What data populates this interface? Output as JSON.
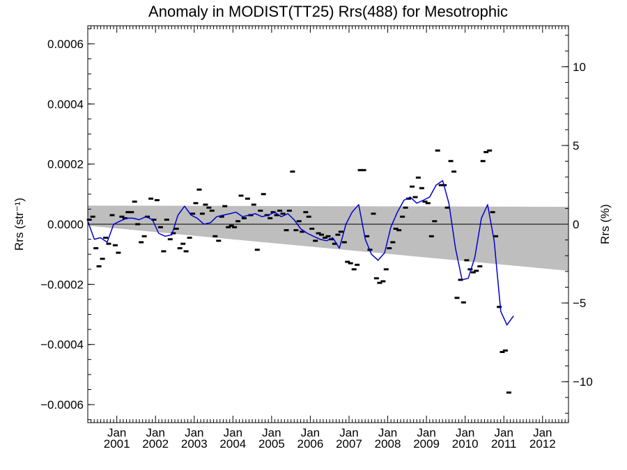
{
  "chart_data": {
    "type": "scatter",
    "title": "Anomaly in MODIST(TT25) Rrs(488) for Mesotrophic",
    "ylabel_left": "Rrs (str⁻¹)",
    "ylabel_right": "Rrs (%)",
    "xlim": [
      2000.25,
      2012.67
    ],
    "ylim": [
      -0.00066,
      0.00066
    ],
    "y2lim": [
      -12.6,
      12.6
    ],
    "x_ticks": [
      {
        "month": "Jan",
        "year": "2001",
        "x": 2001.0
      },
      {
        "month": "Jan",
        "year": "2002",
        "x": 2002.0
      },
      {
        "month": "Jan",
        "year": "2003",
        "x": 2003.0
      },
      {
        "month": "Jan",
        "year": "2004",
        "x": 2004.0
      },
      {
        "month": "Jan",
        "year": "2005",
        "x": 2005.0
      },
      {
        "month": "Jan",
        "year": "2006",
        "x": 2006.0
      },
      {
        "month": "Jan",
        "year": "2007",
        "x": 2007.0
      },
      {
        "month": "Jan",
        "year": "2008",
        "x": 2008.0
      },
      {
        "month": "Jan",
        "year": "2009",
        "x": 2009.0
      },
      {
        "month": "Jan",
        "year": "2010",
        "x": 2010.0
      },
      {
        "month": "Jan",
        "year": "2011",
        "x": 2011.0
      },
      {
        "month": "Jan",
        "year": "2012",
        "x": 2012.0
      }
    ],
    "y_ticks_left": [
      {
        "label": "0.0006",
        "value": 0.0006
      },
      {
        "label": "0.0004",
        "value": 0.0004
      },
      {
        "label": "0.0002",
        "value": 0.0002
      },
      {
        "label": "0.0000",
        "value": 0.0
      },
      {
        "label": "−0.0002",
        "value": -0.0002
      },
      {
        "label": "−0.0004",
        "value": -0.0004
      },
      {
        "label": "−0.0006",
        "value": -0.0006
      }
    ],
    "y_ticks_right": [
      {
        "label": "10",
        "value": 10
      },
      {
        "label": "5",
        "value": 5
      },
      {
        "label": "0",
        "value": 0
      },
      {
        "label": "−5",
        "value": -5
      },
      {
        "label": "−10",
        "value": -10
      }
    ],
    "zero_line": 0.0,
    "uncertainty_band": {
      "color": "#bebebe",
      "upper": [
        [
          2000.25,
          6.2e-05
        ],
        [
          2012.67,
          5.8e-05
        ]
      ],
      "lower": [
        [
          2012.67,
          -0.000155
        ],
        [
          2000.25,
          -5e-06
        ]
      ]
    },
    "series": [
      {
        "style": "dash-markers",
        "color": "#000000",
        "points": [
          [
            2000.29,
            1.5e-05
          ],
          [
            2000.38,
            2.5e-05
          ],
          [
            2000.46,
            -8e-05
          ],
          [
            2000.54,
            -0.00014
          ],
          [
            2000.63,
            -0.000115
          ],
          [
            2000.71,
            -4.5e-05
          ],
          [
            2000.79,
            -6.5e-05
          ],
          [
            2000.88,
            3e-05
          ],
          [
            2000.96,
            -7e-05
          ],
          [
            2001.04,
            -9.5e-05
          ],
          [
            2001.13,
            2.5e-05
          ],
          [
            2001.21,
            2e-05
          ],
          [
            2001.29,
            4e-05
          ],
          [
            2001.38,
            4e-05
          ],
          [
            2001.46,
            7.5e-05
          ],
          [
            2001.54,
            0.0
          ],
          [
            2001.63,
            -6e-05
          ],
          [
            2001.71,
            -4e-05
          ],
          [
            2001.79,
            2.5e-05
          ],
          [
            2001.88,
            8.5e-05
          ],
          [
            2001.96,
            1.5e-05
          ],
          [
            2002.04,
            8e-05
          ],
          [
            2002.13,
            -1e-05
          ],
          [
            2002.21,
            -9e-05
          ],
          [
            2002.29,
            1.5e-05
          ],
          [
            2002.38,
            -5e-05
          ],
          [
            2002.46,
            -3e-05
          ],
          [
            2002.54,
            -1.5e-05
          ],
          [
            2002.63,
            -8e-05
          ],
          [
            2002.71,
            -6.5e-05
          ],
          [
            2002.79,
            -9e-05
          ],
          [
            2002.88,
            -4.5e-05
          ],
          [
            2002.96,
            3.5e-05
          ],
          [
            2003.04,
            7e-05
          ],
          [
            2003.13,
            0.000115
          ],
          [
            2003.21,
            3.5e-05
          ],
          [
            2003.29,
            6.5e-05
          ],
          [
            2003.38,
            5.5e-05
          ],
          [
            2003.46,
            4.5e-05
          ],
          [
            2003.54,
            -4e-05
          ],
          [
            2003.63,
            -5.5e-05
          ],
          [
            2003.71,
            2.5e-05
          ],
          [
            2003.79,
            6e-05
          ],
          [
            2003.88,
            -1e-05
          ],
          [
            2003.96,
            -5e-06
          ],
          [
            2004.04,
            -1e-05
          ],
          [
            2004.13,
            1e-05
          ],
          [
            2004.21,
            9.5e-05
          ],
          [
            2004.29,
            2e-05
          ],
          [
            2004.38,
            8.5e-05
          ],
          [
            2004.46,
            3e-05
          ],
          [
            2004.54,
            6.5e-05
          ],
          [
            2004.63,
            -8.5e-05
          ],
          [
            2004.71,
            4.5e-05
          ],
          [
            2004.79,
            0.0001
          ],
          [
            2004.88,
            3e-05
          ],
          [
            2004.96,
            2e-05
          ],
          [
            2005.04,
            4e-05
          ],
          [
            2005.13,
            3e-05
          ],
          [
            2005.21,
            4.5e-05
          ],
          [
            2005.29,
            3.5e-05
          ],
          [
            2005.38,
            -2e-05
          ],
          [
            2005.46,
            4.5e-05
          ],
          [
            2005.54,
            0.000175
          ],
          [
            2005.63,
            -2e-05
          ],
          [
            2005.71,
            1e-05
          ],
          [
            2005.79,
            -2.5e-05
          ],
          [
            2005.88,
            4e-05
          ],
          [
            2005.96,
            2.5e-05
          ],
          [
            2006.04,
            -1.5e-05
          ],
          [
            2006.13,
            -5.5e-05
          ],
          [
            2006.21,
            -3e-05
          ],
          [
            2006.29,
            -3.5e-05
          ],
          [
            2006.38,
            -4.5e-05
          ],
          [
            2006.46,
            -4e-05
          ],
          [
            2006.54,
            -5e-05
          ],
          [
            2006.63,
            -6.5e-05
          ],
          [
            2006.71,
            -3.5e-05
          ],
          [
            2006.79,
            -2.5e-05
          ],
          [
            2006.88,
            -6e-05
          ],
          [
            2006.96,
            -0.000125
          ],
          [
            2007.04,
            -0.00013
          ],
          [
            2007.13,
            -0.00015
          ],
          [
            2007.21,
            -0.000135
          ],
          [
            2007.29,
            0.00018
          ],
          [
            2007.38,
            0.00018
          ],
          [
            2007.46,
            -4e-05
          ],
          [
            2007.54,
            -8.5e-05
          ],
          [
            2007.63,
            3.5e-05
          ],
          [
            2007.71,
            -0.00018
          ],
          [
            2007.79,
            -0.000195
          ],
          [
            2007.88,
            -0.00019
          ],
          [
            2007.96,
            -0.00015
          ],
          [
            2008.04,
            -8e-05
          ],
          [
            2008.13,
            -6e-05
          ],
          [
            2008.21,
            -1.5e-05
          ],
          [
            2008.29,
            -2e-05
          ],
          [
            2008.38,
            2.5e-05
          ],
          [
            2008.46,
            5.5e-05
          ],
          [
            2008.54,
            8.5e-05
          ],
          [
            2008.63,
            0.000125
          ],
          [
            2008.71,
            9e-05
          ],
          [
            2008.79,
            0.000155
          ],
          [
            2008.88,
            0.00012
          ],
          [
            2008.96,
            7.5e-05
          ],
          [
            2009.04,
            7e-05
          ],
          [
            2009.13,
            -4e-05
          ],
          [
            2009.21,
            1e-05
          ],
          [
            2009.29,
            0.000245
          ],
          [
            2009.38,
            0.00013
          ],
          [
            2009.46,
            0.00013
          ],
          [
            2009.54,
            5.5e-05
          ],
          [
            2009.63,
            0.00021
          ],
          [
            2009.71,
            0.000175
          ],
          [
            2009.79,
            -0.000245
          ],
          [
            2009.88,
            -0.000185
          ],
          [
            2009.96,
            -0.00026
          ],
          [
            2010.04,
            -0.00012
          ],
          [
            2010.13,
            -0.00015
          ],
          [
            2010.21,
            -0.00016
          ],
          [
            2010.29,
            -0.000155
          ],
          [
            2010.38,
            -0.00014
          ],
          [
            2010.46,
            0.00021
          ],
          [
            2010.54,
            0.00024
          ],
          [
            2010.63,
            0.000245
          ],
          [
            2010.71,
            4e-05
          ],
          [
            2010.79,
            -4e-05
          ],
          [
            2010.88,
            -0.000275
          ],
          [
            2010.96,
            -0.000425
          ],
          [
            2011.04,
            -0.00042
          ],
          [
            2011.13,
            -0.00056
          ]
        ]
      },
      {
        "style": "line",
        "color": "#0000cc",
        "points": [
          [
            2000.25,
            1e-05
          ],
          [
            2000.42,
            -5e-05
          ],
          [
            2000.58,
            -4.5e-05
          ],
          [
            2000.75,
            -6e-05
          ],
          [
            2000.92,
            0.0
          ],
          [
            2001.08,
            1e-05
          ],
          [
            2001.25,
            2e-05
          ],
          [
            2001.42,
            2e-05
          ],
          [
            2001.58,
            1.5e-05
          ],
          [
            2001.75,
            2.5e-05
          ],
          [
            2001.92,
            1.5e-05
          ],
          [
            2002.08,
            -3e-05
          ],
          [
            2002.25,
            -4e-05
          ],
          [
            2002.42,
            -3.5e-05
          ],
          [
            2002.58,
            3e-05
          ],
          [
            2002.75,
            6e-05
          ],
          [
            2002.92,
            3e-05
          ],
          [
            2003.08,
            2e-05
          ],
          [
            2003.25,
            0.0
          ],
          [
            2003.42,
            5e-06
          ],
          [
            2003.58,
            2.5e-05
          ],
          [
            2003.75,
            3e-05
          ],
          [
            2003.92,
            3.5e-05
          ],
          [
            2004.08,
            4e-05
          ],
          [
            2004.25,
            2.5e-05
          ],
          [
            2004.42,
            3e-05
          ],
          [
            2004.58,
            3.5e-05
          ],
          [
            2004.75,
            2.5e-05
          ],
          [
            2004.92,
            3e-05
          ],
          [
            2005.08,
            4e-05
          ],
          [
            2005.25,
            2.5e-05
          ],
          [
            2005.42,
            3.5e-05
          ],
          [
            2005.58,
            1.5e-05
          ],
          [
            2005.75,
            -1.5e-05
          ],
          [
            2005.92,
            -3e-05
          ],
          [
            2006.08,
            -4e-05
          ],
          [
            2006.25,
            -5e-05
          ],
          [
            2006.42,
            -5.5e-05
          ],
          [
            2006.58,
            -4.5e-05
          ],
          [
            2006.75,
            -8e-05
          ],
          [
            2006.92,
            0.0
          ],
          [
            2007.08,
            4e-05
          ],
          [
            2007.25,
            6.5e-05
          ],
          [
            2007.42,
            -5e-05
          ],
          [
            2007.58,
            -0.0001
          ],
          [
            2007.75,
            -0.00012
          ],
          [
            2007.92,
            -9.5e-05
          ],
          [
            2008.08,
            -1e-05
          ],
          [
            2008.25,
            4e-05
          ],
          [
            2008.42,
            8e-05
          ],
          [
            2008.58,
            9e-05
          ],
          [
            2008.75,
            7e-05
          ],
          [
            2008.92,
            8e-05
          ],
          [
            2009.08,
            9e-05
          ],
          [
            2009.25,
            0.00013
          ],
          [
            2009.42,
            0.000145
          ],
          [
            2009.58,
            7e-05
          ],
          [
            2009.75,
            -8e-05
          ],
          [
            2009.92,
            -0.000185
          ],
          [
            2010.08,
            -0.00018
          ],
          [
            2010.25,
            -0.00011
          ],
          [
            2010.42,
            2e-05
          ],
          [
            2010.58,
            6.5e-05
          ],
          [
            2010.75,
            -5.5e-05
          ],
          [
            2010.92,
            -0.00029
          ],
          [
            2011.08,
            -0.000335
          ],
          [
            2011.25,
            -0.000305
          ]
        ]
      }
    ]
  }
}
